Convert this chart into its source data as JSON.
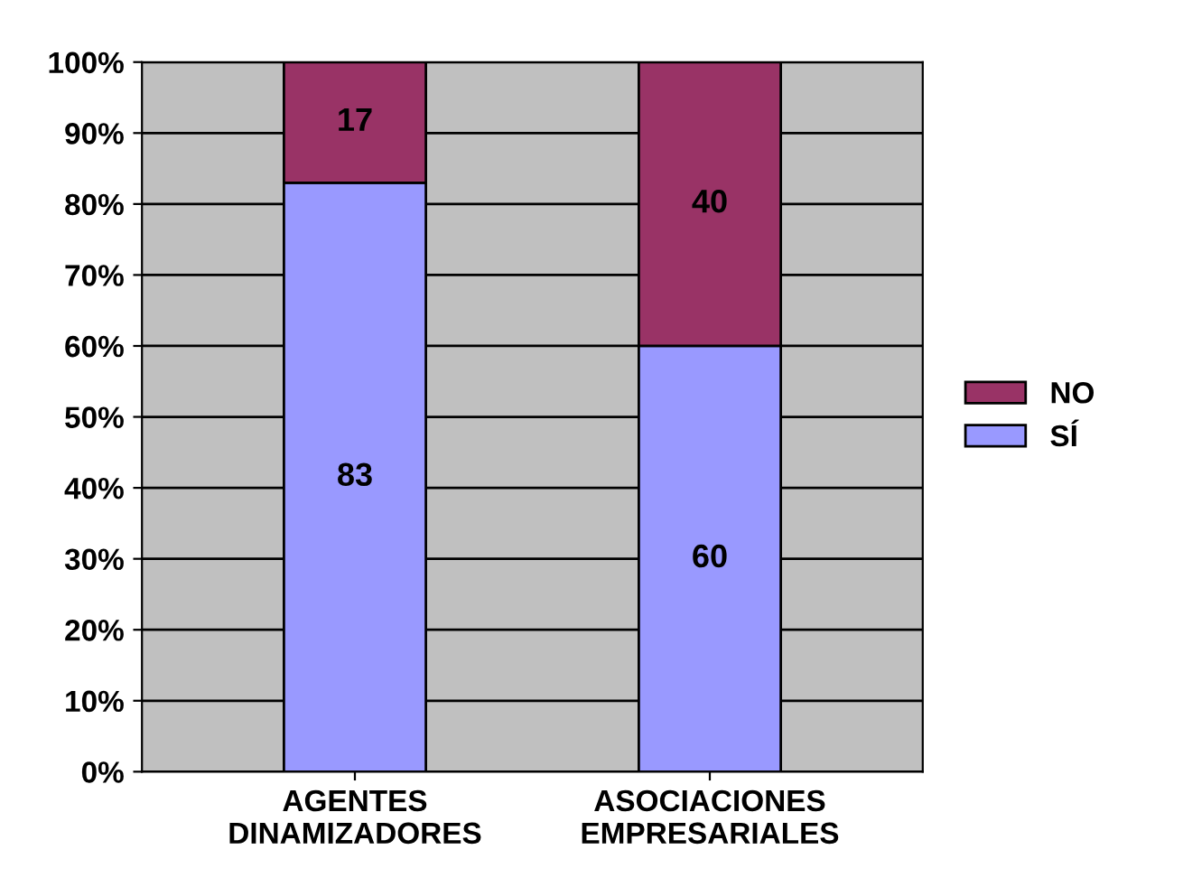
{
  "chart_data": {
    "type": "bar",
    "stacked": true,
    "categories": [
      "AGENTES\nDINAMIZADORES",
      "ASOCIACIONES\nEMPRESARIALES"
    ],
    "series": [
      {
        "name": "SÍ",
        "color": "#9999ff",
        "values": [
          83,
          60
        ]
      },
      {
        "name": "NO",
        "color": "#993366",
        "values": [
          17,
          40
        ]
      }
    ],
    "ylim": [
      0,
      100
    ],
    "yticks": [
      {
        "value": 0,
        "label": "0%"
      },
      {
        "value": 10,
        "label": "10%"
      },
      {
        "value": 20,
        "label": "20%"
      },
      {
        "value": 30,
        "label": "30%"
      },
      {
        "value": 40,
        "label": "40%"
      },
      {
        "value": 50,
        "label": "50%"
      },
      {
        "value": 60,
        "label": "60%"
      },
      {
        "value": 70,
        "label": "70%"
      },
      {
        "value": 80,
        "label": "80%"
      },
      {
        "value": 90,
        "label": "90%"
      },
      {
        "value": 100,
        "label": "100%"
      }
    ],
    "grid": "y",
    "legend": "right",
    "data_labels": true
  }
}
